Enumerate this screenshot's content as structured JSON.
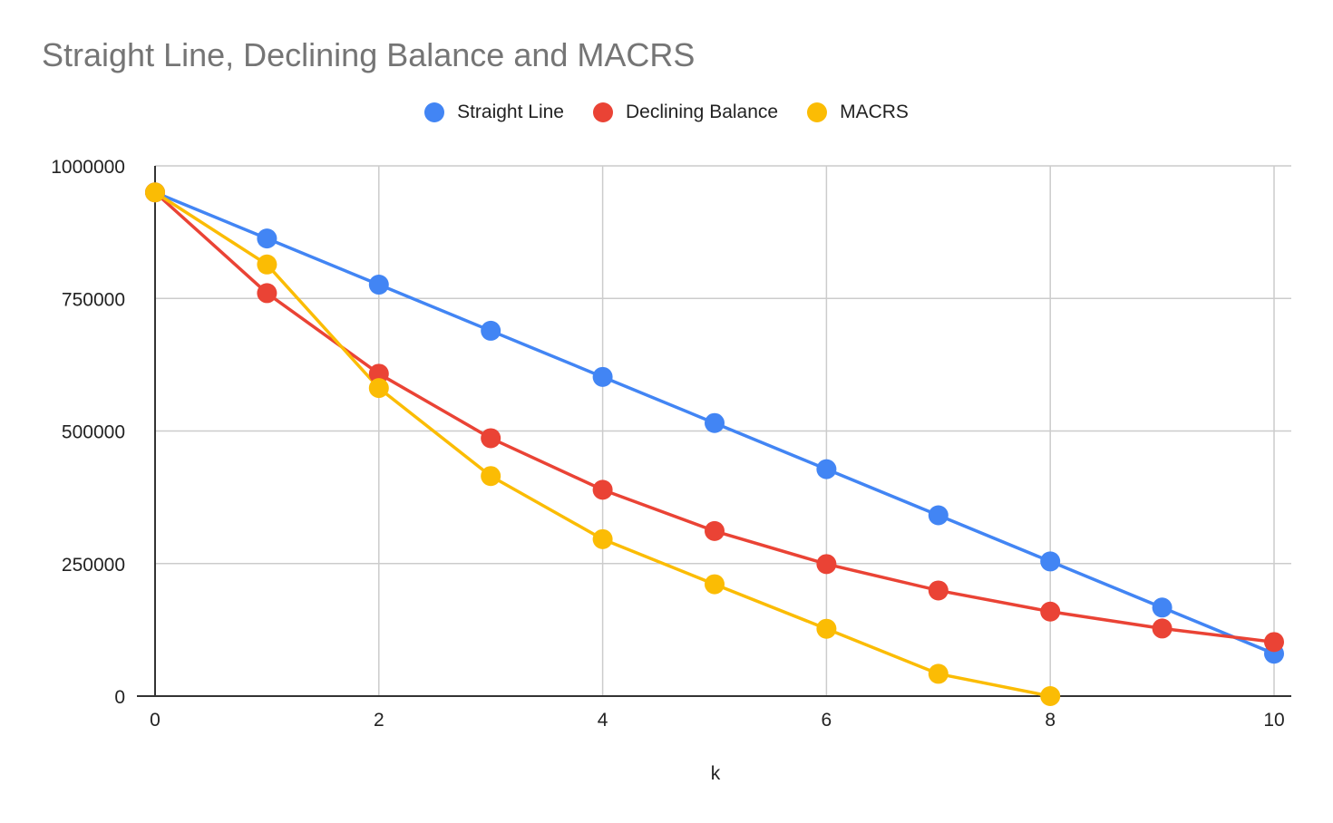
{
  "chart_data": {
    "type": "line",
    "title": "Straight Line, Declining Balance and MACRS",
    "xlabel": "k",
    "ylabel": "",
    "xlim": [
      0,
      10
    ],
    "ylim": [
      0,
      1000000
    ],
    "xticks": [
      0,
      2,
      4,
      6,
      8,
      10
    ],
    "yticks": [
      0,
      250000,
      500000,
      750000,
      1000000
    ],
    "grid": true,
    "legend_position": "top-center",
    "series": [
      {
        "name": "Straight Line",
        "color": "#4285F4",
        "x": [
          0,
          1,
          2,
          3,
          4,
          5,
          6,
          7,
          8,
          9,
          10
        ],
        "values": [
          950000,
          863000,
          776000,
          689000,
          602000,
          515000,
          428000,
          341000,
          254000,
          167000,
          80000
        ]
      },
      {
        "name": "Declining Balance",
        "color": "#EA4335",
        "x": [
          0,
          1,
          2,
          3,
          4,
          5,
          6,
          7,
          8,
          9,
          10
        ],
        "values": [
          950000,
          760000,
          608000,
          486400,
          389120,
          311296,
          249037,
          199229,
          159384,
          127507,
          102006
        ]
      },
      {
        "name": "MACRS",
        "color": "#FBBC04",
        "x": [
          0,
          1,
          2,
          3,
          4,
          5,
          6,
          7,
          8
        ],
        "values": [
          950000,
          814000,
          581000,
          415000,
          296000,
          211000,
          127000,
          42000,
          0
        ]
      }
    ]
  }
}
